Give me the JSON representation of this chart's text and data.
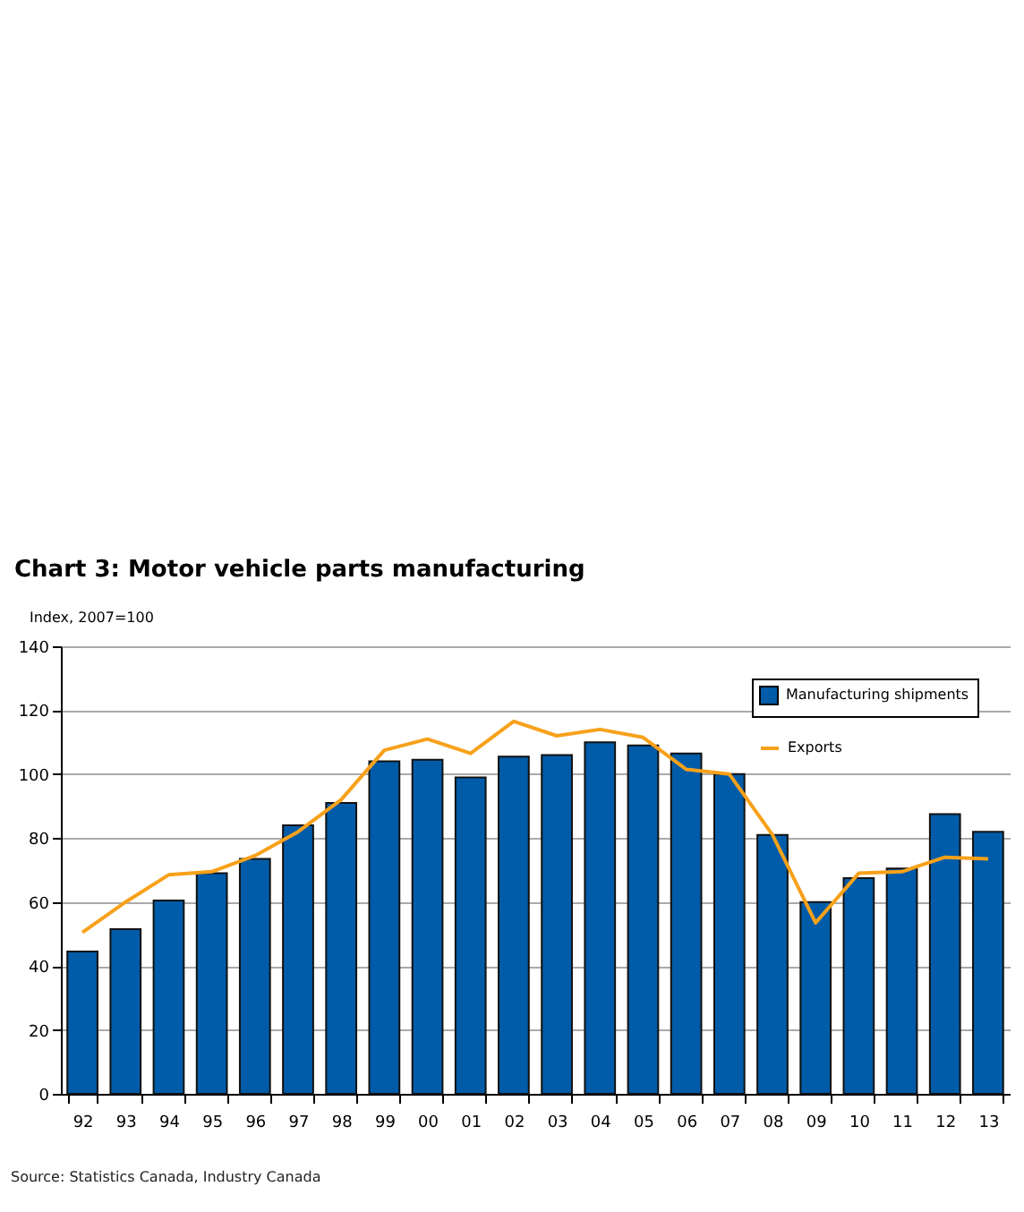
{
  "chart_data": {
    "type": "bar",
    "title": "Chart 3: Motor vehicle parts manufacturing",
    "ylabel": "Index, 2007=100",
    "categories": [
      "92",
      "93",
      "94",
      "95",
      "96",
      "97",
      "98",
      "99",
      "00",
      "01",
      "02",
      "03",
      "04",
      "05",
      "06",
      "07",
      "08",
      "09",
      "10",
      "11",
      "12",
      "13"
    ],
    "series": [
      {
        "name": "Manufacturing shipments",
        "color": "#005ca8",
        "values": [
          44.5,
          51.5,
          60.5,
          69,
          73.5,
          84,
          91,
          104,
          104.5,
          99,
          105.5,
          106,
          110,
          109,
          106.5,
          100,
          81,
          60,
          67.5,
          70.5,
          87.5,
          82
        ]
      },
      {
        "name": "Exports",
        "type": "line",
        "color": "#f7a11a",
        "values": [
          50.5,
          60,
          68.5,
          69.5,
          74.5,
          82,
          92,
          107.5,
          111,
          106.5,
          116.5,
          112,
          114,
          111.5,
          101.5,
          100,
          81,
          53.5,
          69,
          69.5,
          74,
          73.5
        ]
      }
    ],
    "ylim": [
      0,
      140
    ],
    "yticks": [
      0,
      20,
      40,
      60,
      80,
      100,
      120,
      140
    ],
    "grid": "y",
    "legend": "top right",
    "annotations": [
      "Source: Statistics Canada, Industry Canada"
    ]
  }
}
